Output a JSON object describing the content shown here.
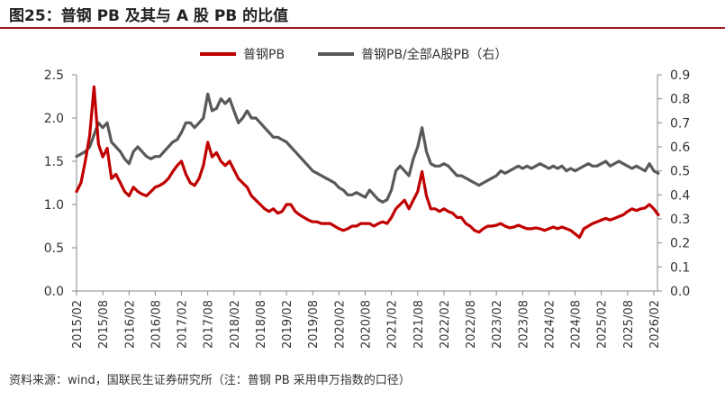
{
  "title": "图25：普钢 PB 及其与 A 股 PB 的比值",
  "source": "资料来源：wind，国联民生证券研究所（注：普钢 PB 采用申万指数的口径）",
  "colors": {
    "series_main": "#c00000",
    "series_ratio": "#595959",
    "title_rule": "#9e1b1b"
  },
  "chart_data": {
    "type": "line",
    "title": "图25：普钢 PB 及其与 A 股 PB 的比值",
    "legend_position": "top-center",
    "grid": false,
    "x_tick_labels": [
      "2015/02",
      "2015/08",
      "2016/02",
      "2016/08",
      "2017/02",
      "2017/08",
      "2018/02",
      "2018/08",
      "2019/02",
      "2019/08",
      "2020/02",
      "2020/08",
      "2021/02",
      "2021/08",
      "2022/02",
      "2022/08",
      "2023/02",
      "2023/08",
      "2024/02",
      "2024/08",
      "2025/02",
      "2025/08",
      "2026/02"
    ],
    "x_range": [
      "2015-02",
      "2026-02"
    ],
    "y_left": {
      "ticks": [
        "0.0",
        "0.5",
        "1.0",
        "1.5",
        "2.0",
        "2.5"
      ],
      "range": [
        0,
        2.5
      ]
    },
    "y_right": {
      "ticks": [
        "0.0",
        "0.1",
        "0.2",
        "0.3",
        "0.4",
        "0.5",
        "0.6",
        "0.7",
        "0.8",
        "0.9"
      ],
      "range": [
        0,
        0.9
      ]
    },
    "series": [
      {
        "name": "普钢PB",
        "axis": "left",
        "points": [
          [
            "2015-02",
            1.15
          ],
          [
            "2015-03",
            1.25
          ],
          [
            "2015-04",
            1.5
          ],
          [
            "2015-05",
            1.8
          ],
          [
            "2015-06",
            2.36
          ],
          [
            "2015-07",
            1.7
          ],
          [
            "2015-08",
            1.55
          ],
          [
            "2015-09",
            1.65
          ],
          [
            "2015-10",
            1.3
          ],
          [
            "2015-11",
            1.35
          ],
          [
            "2015-12",
            1.25
          ],
          [
            "2016-01",
            1.15
          ],
          [
            "2016-02",
            1.1
          ],
          [
            "2016-03",
            1.2
          ],
          [
            "2016-04",
            1.15
          ],
          [
            "2016-05",
            1.12
          ],
          [
            "2016-06",
            1.1
          ],
          [
            "2016-07",
            1.15
          ],
          [
            "2016-08",
            1.2
          ],
          [
            "2016-09",
            1.22
          ],
          [
            "2016-10",
            1.25
          ],
          [
            "2016-11",
            1.3
          ],
          [
            "2016-12",
            1.38
          ],
          [
            "2017-01",
            1.45
          ],
          [
            "2017-02",
            1.5
          ],
          [
            "2017-03",
            1.35
          ],
          [
            "2017-04",
            1.25
          ],
          [
            "2017-05",
            1.22
          ],
          [
            "2017-06",
            1.3
          ],
          [
            "2017-07",
            1.45
          ],
          [
            "2017-08",
            1.72
          ],
          [
            "2017-09",
            1.55
          ],
          [
            "2017-10",
            1.6
          ],
          [
            "2017-11",
            1.5
          ],
          [
            "2017-12",
            1.45
          ],
          [
            "2018-01",
            1.5
          ],
          [
            "2018-02",
            1.4
          ],
          [
            "2018-03",
            1.3
          ],
          [
            "2018-04",
            1.25
          ],
          [
            "2018-05",
            1.2
          ],
          [
            "2018-06",
            1.1
          ],
          [
            "2018-07",
            1.05
          ],
          [
            "2018-08",
            1.0
          ],
          [
            "2018-09",
            0.95
          ],
          [
            "2018-10",
            0.92
          ],
          [
            "2018-11",
            0.95
          ],
          [
            "2018-12",
            0.9
          ],
          [
            "2019-01",
            0.92
          ],
          [
            "2019-02",
            1.0
          ],
          [
            "2019-03",
            1.0
          ],
          [
            "2019-04",
            0.92
          ],
          [
            "2019-05",
            0.88
          ],
          [
            "2019-06",
            0.85
          ],
          [
            "2019-07",
            0.82
          ],
          [
            "2019-08",
            0.8
          ],
          [
            "2019-09",
            0.8
          ],
          [
            "2019-10",
            0.78
          ],
          [
            "2019-11",
            0.78
          ],
          [
            "2019-12",
            0.78
          ],
          [
            "2020-01",
            0.75
          ],
          [
            "2020-02",
            0.72
          ],
          [
            "2020-03",
            0.7
          ],
          [
            "2020-04",
            0.72
          ],
          [
            "2020-05",
            0.75
          ],
          [
            "2020-06",
            0.75
          ],
          [
            "2020-07",
            0.78
          ],
          [
            "2020-08",
            0.78
          ],
          [
            "2020-09",
            0.78
          ],
          [
            "2020-10",
            0.75
          ],
          [
            "2020-11",
            0.78
          ],
          [
            "2020-12",
            0.8
          ],
          [
            "2021-01",
            0.78
          ],
          [
            "2021-02",
            0.85
          ],
          [
            "2021-03",
            0.95
          ],
          [
            "2021-04",
            1.0
          ],
          [
            "2021-05",
            1.05
          ],
          [
            "2021-06",
            0.95
          ],
          [
            "2021-07",
            1.05
          ],
          [
            "2021-08",
            1.15
          ],
          [
            "2021-09",
            1.38
          ],
          [
            "2021-10",
            1.1
          ],
          [
            "2021-11",
            0.95
          ],
          [
            "2021-12",
            0.95
          ],
          [
            "2022-01",
            0.92
          ],
          [
            "2022-02",
            0.95
          ],
          [
            "2022-03",
            0.92
          ],
          [
            "2022-04",
            0.9
          ],
          [
            "2022-05",
            0.85
          ],
          [
            "2022-06",
            0.85
          ],
          [
            "2022-07",
            0.78
          ],
          [
            "2022-08",
            0.75
          ],
          [
            "2022-09",
            0.7
          ],
          [
            "2022-10",
            0.68
          ],
          [
            "2022-11",
            0.72
          ],
          [
            "2022-12",
            0.75
          ],
          [
            "2023-01",
            0.75
          ],
          [
            "2023-02",
            0.76
          ],
          [
            "2023-03",
            0.78
          ],
          [
            "2023-04",
            0.75
          ],
          [
            "2023-05",
            0.73
          ],
          [
            "2023-06",
            0.74
          ],
          [
            "2023-07",
            0.76
          ],
          [
            "2023-08",
            0.74
          ],
          [
            "2023-09",
            0.72
          ],
          [
            "2023-10",
            0.72
          ],
          [
            "2023-11",
            0.73
          ],
          [
            "2023-12",
            0.72
          ],
          [
            "2024-01",
            0.7
          ],
          [
            "2024-02",
            0.72
          ],
          [
            "2024-03",
            0.74
          ],
          [
            "2024-04",
            0.72
          ],
          [
            "2024-05",
            0.74
          ],
          [
            "2024-06",
            0.72
          ],
          [
            "2024-07",
            0.7
          ],
          [
            "2024-08",
            0.66
          ],
          [
            "2024-09",
            0.62
          ],
          [
            "2024-10",
            0.72
          ],
          [
            "2024-11",
            0.75
          ],
          [
            "2024-12",
            0.78
          ],
          [
            "2025-01",
            0.8
          ],
          [
            "2025-02",
            0.82
          ],
          [
            "2025-03",
            0.84
          ],
          [
            "2025-04",
            0.82
          ],
          [
            "2025-05",
            0.84
          ],
          [
            "2025-06",
            0.86
          ],
          [
            "2025-07",
            0.88
          ],
          [
            "2025-08",
            0.92
          ],
          [
            "2025-09",
            0.95
          ],
          [
            "2025-10",
            0.93
          ],
          [
            "2025-11",
            0.95
          ],
          [
            "2025-12",
            0.96
          ],
          [
            "2026-01",
            1.0
          ],
          [
            "2026-02",
            0.95
          ],
          [
            "2026-03",
            0.88
          ]
        ]
      },
      {
        "name": "普钢PB/全部A股PB（右）",
        "axis": "right",
        "points": [
          [
            "2015-02",
            0.56
          ],
          [
            "2015-03",
            0.57
          ],
          [
            "2015-04",
            0.58
          ],
          [
            "2015-05",
            0.6
          ],
          [
            "2015-06",
            0.65
          ],
          [
            "2015-07",
            0.7
          ],
          [
            "2015-08",
            0.68
          ],
          [
            "2015-09",
            0.7
          ],
          [
            "2015-10",
            0.62
          ],
          [
            "2015-11",
            0.6
          ],
          [
            "2015-12",
            0.58
          ],
          [
            "2016-01",
            0.55
          ],
          [
            "2016-02",
            0.53
          ],
          [
            "2016-03",
            0.58
          ],
          [
            "2016-04",
            0.6
          ],
          [
            "2016-05",
            0.58
          ],
          [
            "2016-06",
            0.56
          ],
          [
            "2016-07",
            0.55
          ],
          [
            "2016-08",
            0.56
          ],
          [
            "2016-09",
            0.56
          ],
          [
            "2016-10",
            0.58
          ],
          [
            "2016-11",
            0.6
          ],
          [
            "2016-12",
            0.62
          ],
          [
            "2017-01",
            0.63
          ],
          [
            "2017-02",
            0.66
          ],
          [
            "2017-03",
            0.7
          ],
          [
            "2017-04",
            0.7
          ],
          [
            "2017-05",
            0.68
          ],
          [
            "2017-06",
            0.7
          ],
          [
            "2017-07",
            0.72
          ],
          [
            "2017-08",
            0.82
          ],
          [
            "2017-09",
            0.75
          ],
          [
            "2017-10",
            0.76
          ],
          [
            "2017-11",
            0.8
          ],
          [
            "2017-12",
            0.78
          ],
          [
            "2018-01",
            0.8
          ],
          [
            "2018-02",
            0.75
          ],
          [
            "2018-03",
            0.7
          ],
          [
            "2018-04",
            0.72
          ],
          [
            "2018-05",
            0.75
          ],
          [
            "2018-06",
            0.72
          ],
          [
            "2018-07",
            0.72
          ],
          [
            "2018-08",
            0.7
          ],
          [
            "2018-09",
            0.68
          ],
          [
            "2018-10",
            0.66
          ],
          [
            "2018-11",
            0.64
          ],
          [
            "2018-12",
            0.64
          ],
          [
            "2019-01",
            0.63
          ],
          [
            "2019-02",
            0.62
          ],
          [
            "2019-03",
            0.6
          ],
          [
            "2019-04",
            0.58
          ],
          [
            "2019-05",
            0.56
          ],
          [
            "2019-06",
            0.54
          ],
          [
            "2019-07",
            0.52
          ],
          [
            "2019-08",
            0.5
          ],
          [
            "2019-09",
            0.49
          ],
          [
            "2019-10",
            0.48
          ],
          [
            "2019-11",
            0.47
          ],
          [
            "2019-12",
            0.46
          ],
          [
            "2020-01",
            0.45
          ],
          [
            "2020-02",
            0.43
          ],
          [
            "2020-03",
            0.42
          ],
          [
            "2020-04",
            0.4
          ],
          [
            "2020-05",
            0.4
          ],
          [
            "2020-06",
            0.41
          ],
          [
            "2020-07",
            0.4
          ],
          [
            "2020-08",
            0.39
          ],
          [
            "2020-09",
            0.42
          ],
          [
            "2020-10",
            0.4
          ],
          [
            "2020-11",
            0.38
          ],
          [
            "2020-12",
            0.37
          ],
          [
            "2021-01",
            0.38
          ],
          [
            "2021-02",
            0.42
          ],
          [
            "2021-03",
            0.5
          ],
          [
            "2021-04",
            0.52
          ],
          [
            "2021-05",
            0.5
          ],
          [
            "2021-06",
            0.48
          ],
          [
            "2021-07",
            0.55
          ],
          [
            "2021-08",
            0.6
          ],
          [
            "2021-09",
            0.68
          ],
          [
            "2021-10",
            0.58
          ],
          [
            "2021-11",
            0.53
          ],
          [
            "2021-12",
            0.52
          ],
          [
            "2022-01",
            0.52
          ],
          [
            "2022-02",
            0.53
          ],
          [
            "2022-03",
            0.52
          ],
          [
            "2022-04",
            0.5
          ],
          [
            "2022-05",
            0.48
          ],
          [
            "2022-06",
            0.48
          ],
          [
            "2022-07",
            0.47
          ],
          [
            "2022-08",
            0.46
          ],
          [
            "2022-09",
            0.45
          ],
          [
            "2022-10",
            0.44
          ],
          [
            "2022-11",
            0.45
          ],
          [
            "2022-12",
            0.46
          ],
          [
            "2023-01",
            0.47
          ],
          [
            "2023-02",
            0.48
          ],
          [
            "2023-03",
            0.5
          ],
          [
            "2023-04",
            0.49
          ],
          [
            "2023-05",
            0.5
          ],
          [
            "2023-06",
            0.51
          ],
          [
            "2023-07",
            0.52
          ],
          [
            "2023-08",
            0.51
          ],
          [
            "2023-09",
            0.52
          ],
          [
            "2023-10",
            0.51
          ],
          [
            "2023-11",
            0.52
          ],
          [
            "2023-12",
            0.53
          ],
          [
            "2024-01",
            0.52
          ],
          [
            "2024-02",
            0.51
          ],
          [
            "2024-03",
            0.52
          ],
          [
            "2024-04",
            0.51
          ],
          [
            "2024-05",
            0.52
          ],
          [
            "2024-06",
            0.5
          ],
          [
            "2024-07",
            0.51
          ],
          [
            "2024-08",
            0.5
          ],
          [
            "2024-09",
            0.51
          ],
          [
            "2024-10",
            0.52
          ],
          [
            "2024-11",
            0.53
          ],
          [
            "2024-12",
            0.52
          ],
          [
            "2025-01",
            0.52
          ],
          [
            "2025-02",
            0.53
          ],
          [
            "2025-03",
            0.54
          ],
          [
            "2025-04",
            0.52
          ],
          [
            "2025-05",
            0.53
          ],
          [
            "2025-06",
            0.54
          ],
          [
            "2025-07",
            0.53
          ],
          [
            "2025-08",
            0.52
          ],
          [
            "2025-09",
            0.51
          ],
          [
            "2025-10",
            0.52
          ],
          [
            "2025-11",
            0.51
          ],
          [
            "2025-12",
            0.5
          ],
          [
            "2026-01",
            0.53
          ],
          [
            "2026-02",
            0.5
          ],
          [
            "2026-03",
            0.49
          ]
        ]
      }
    ]
  }
}
